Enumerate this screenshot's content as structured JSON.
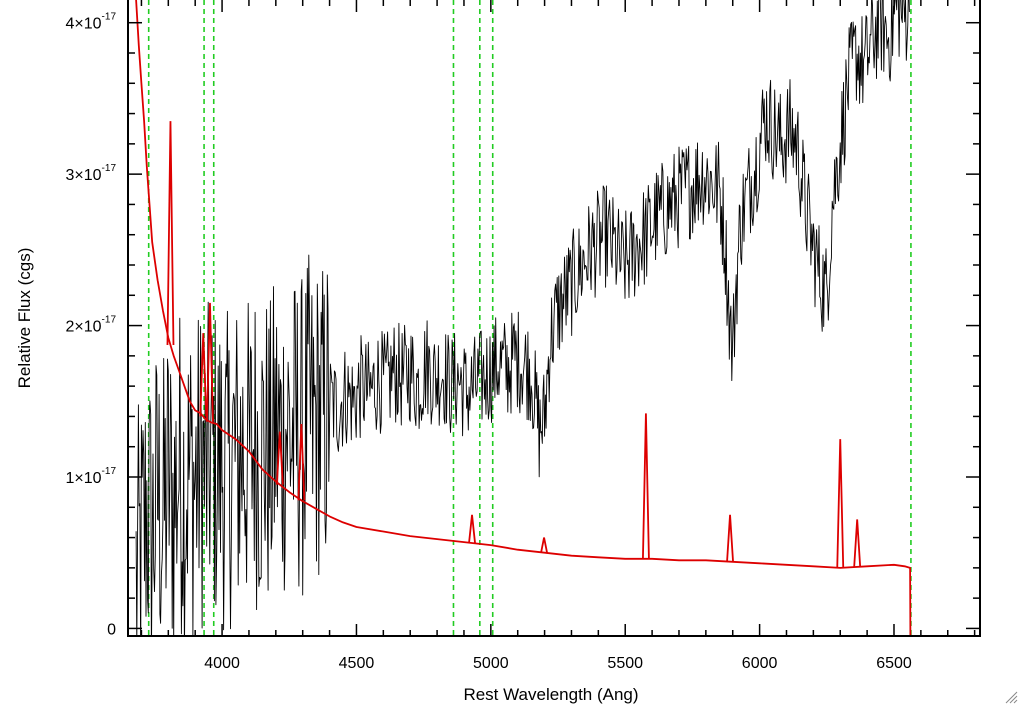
{
  "chart_data": {
    "type": "line",
    "title": "",
    "xlabel": "Rest Wavelength (Ang)",
    "ylabel": "Relative Flux (cgs)",
    "xlim": [
      3650,
      6820
    ],
    "ylim": [
      -5e-19,
      4.15e-17
    ],
    "x_ticks": [
      {
        "value": 4000,
        "label": "4000"
      },
      {
        "value": 4500,
        "label": "4500"
      },
      {
        "value": 5000,
        "label": "5000"
      },
      {
        "value": 5500,
        "label": "5500"
      },
      {
        "value": 6000,
        "label": "6000"
      },
      {
        "value": 6500,
        "label": "6500"
      }
    ],
    "y_ticks": [
      {
        "value": 0,
        "label": "0",
        "exp": ""
      },
      {
        "value": 1e-17,
        "label": "1×10",
        "exp": "-17"
      },
      {
        "value": 2e-17,
        "label": "2×10",
        "exp": "-17"
      },
      {
        "value": 3e-17,
        "label": "3×10",
        "exp": "-17"
      },
      {
        "value": 4e-17,
        "label": "4×10",
        "exp": "-17"
      }
    ],
    "grid": false,
    "series": [
      {
        "color": "#000000",
        "role": "observed spectrum",
        "x": [
          3680,
          3700,
          3720,
          3740,
          3760,
          3780,
          3800,
          3820,
          3840,
          3860,
          3880,
          3900,
          3920,
          3940,
          3960,
          3980,
          4000,
          4020,
          4040,
          4060,
          4080,
          4100,
          4120,
          4140,
          4160,
          4180,
          4200,
          4220,
          4240,
          4260,
          4280,
          4300,
          4320,
          4340,
          4360,
          4380,
          4400,
          4430,
          4460,
          4490,
          4520,
          4550,
          4580,
          4610,
          4640,
          4670,
          4700,
          4730,
          4760,
          4790,
          4820,
          4850,
          4880,
          4910,
          4940,
          4970,
          5000,
          5030,
          5060,
          5090,
          5120,
          5150,
          5180,
          5200,
          5220,
          5250,
          5280,
          5310,
          5340,
          5370,
          5400,
          5430,
          5460,
          5490,
          5520,
          5550,
          5580,
          5610,
          5640,
          5670,
          5700,
          5730,
          5760,
          5790,
          5820,
          5850,
          5870,
          5890,
          5900,
          5910,
          5930,
          5960,
          5990,
          6020,
          6050,
          6080,
          6110,
          6140,
          6170,
          6200,
          6230,
          6250,
          6270,
          6300,
          6330,
          6360,
          6390,
          6420,
          6450,
          6480,
          6510,
          6540,
          6560
        ],
        "y": [
          3e-18,
          5e-18,
          8e-18,
          6e-18,
          9e-18,
          7e-18,
          1e-17,
          8e-18,
          1.1e-17,
          9e-18,
          1.05e-17,
          9.5e-18,
          1.1e-17,
          1e-17,
          1.15e-17,
          1.05e-17,
          1.1e-17,
          1e-17,
          1.15e-17,
          1.1e-17,
          1.2e-17,
          1.1e-17,
          1.25e-17,
          1.15e-17,
          1.2e-17,
          1.1e-17,
          1.3e-17,
          1.2e-17,
          1.35e-17,
          1.25e-17,
          1.3e-17,
          1.25e-17,
          1.4e-17,
          1.3e-17,
          1.4e-17,
          1.35e-17,
          1.5e-17,
          1.45e-17,
          1.55e-17,
          1.5e-17,
          1.6e-17,
          1.55e-17,
          1.65e-17,
          1.6e-17,
          1.7e-17,
          1.65e-17,
          1.7e-17,
          1.6e-17,
          1.75e-17,
          1.65e-17,
          1.7e-17,
          1.6e-17,
          1.65e-17,
          1.55e-17,
          1.6e-17,
          1.65e-17,
          1.7e-17,
          1.75e-17,
          1.7e-17,
          1.8e-17,
          1.75e-17,
          1.7e-17,
          1.3e-17,
          1.4e-17,
          1.9e-17,
          2.1e-17,
          2.2e-17,
          2.3e-17,
          2.4e-17,
          2.5e-17,
          2.55e-17,
          2.6e-17,
          2.5e-17,
          2.4e-17,
          2.45e-17,
          2.55e-17,
          2.6e-17,
          2.7e-17,
          2.75e-17,
          2.8e-17,
          2.85e-17,
          2.9e-17,
          2.95e-17,
          3e-17,
          2.95e-17,
          2.9e-17,
          2.6e-17,
          2e-17,
          1.8e-17,
          2.2e-17,
          2.7e-17,
          2.9e-17,
          3.1e-17,
          3.4e-17,
          3.3e-17,
          3.2e-17,
          3.3e-17,
          3.2e-17,
          2.8e-17,
          2.5e-17,
          2.3e-17,
          2.2e-17,
          2.8e-17,
          3.2e-17,
          3.6e-17,
          3.8e-17,
          3.7e-17,
          3.9e-17,
          4e-17,
          3.9e-17,
          4.1e-17,
          4.05e-17,
          4.1e-17
        ]
      },
      {
        "color": "#dd0000",
        "role": "model spectrum",
        "x": [
          3680,
          3690,
          3700,
          3710,
          3720,
          3730,
          3740,
          3760,
          3780,
          3800,
          3820,
          3840,
          3860,
          3880,
          3900,
          3920,
          3940,
          3960,
          3980,
          4000,
          4050,
          4100,
          4150,
          4200,
          4250,
          4300,
          4350,
          4400,
          4450,
          4500,
          4600,
          4700,
          4800,
          4900,
          5000,
          5100,
          5200,
          5300,
          5400,
          5500,
          5600,
          5700,
          5800,
          5900,
          6000,
          6100,
          6200,
          6300,
          6400,
          6500,
          6540,
          6560,
          6561,
          6700,
          6820
        ],
        "y": [
          4.15e-17,
          3.85e-17,
          3.6e-17,
          3.35e-17,
          3.05e-17,
          2.8e-17,
          2.55e-17,
          2.3e-17,
          2.1e-17,
          1.92e-17,
          1.8e-17,
          1.7e-17,
          1.6e-17,
          1.5e-17,
          1.44e-17,
          1.42e-17,
          1.38e-17,
          1.36e-17,
          1.35e-17,
          1.31e-17,
          1.25e-17,
          1.17e-17,
          1.05e-17,
          9.7e-18,
          9e-18,
          8.4e-18,
          7.9e-18,
          7.4e-18,
          7e-18,
          6.7e-18,
          6.4e-18,
          6.1e-18,
          5.9e-18,
          5.7e-18,
          5.5e-18,
          5.2e-18,
          5e-18,
          4.8e-18,
          4.7e-18,
          4.6e-18,
          4.6e-18,
          4.5e-18,
          4.5e-18,
          4.4e-18,
          4.3e-18,
          4.2e-18,
          4.1e-18,
          4e-18,
          4.1e-18,
          4.2e-18,
          4.1e-18,
          4e-18,
          -5e-19,
          -5e-19,
          -5e-19
        ]
      }
    ],
    "emission_spikes": [
      {
        "x": 3808,
        "y": 3.35e-17
      },
      {
        "x": 3930,
        "y": 1.95e-17
      },
      {
        "x": 3955,
        "y": 2.15e-17
      },
      {
        "x": 4215,
        "y": 1.3e-17
      },
      {
        "x": 4295,
        "y": 1.35e-17
      },
      {
        "x": 4930,
        "y": 7.5e-18
      },
      {
        "x": 5198,
        "y": 6e-18
      },
      {
        "x": 5577,
        "y": 1.42e-17
      },
      {
        "x": 5890,
        "y": 7.5e-18
      },
      {
        "x": 6300,
        "y": 1.25e-17
      },
      {
        "x": 6363,
        "y": 7.2e-18
      }
    ],
    "reference_lines": {
      "color": "#22cc22",
      "x": [
        3727,
        3933,
        3969,
        4861,
        4959,
        5007,
        6563
      ]
    }
  },
  "decor": {
    "resize_grip_icon": "resize-grip-icon"
  }
}
